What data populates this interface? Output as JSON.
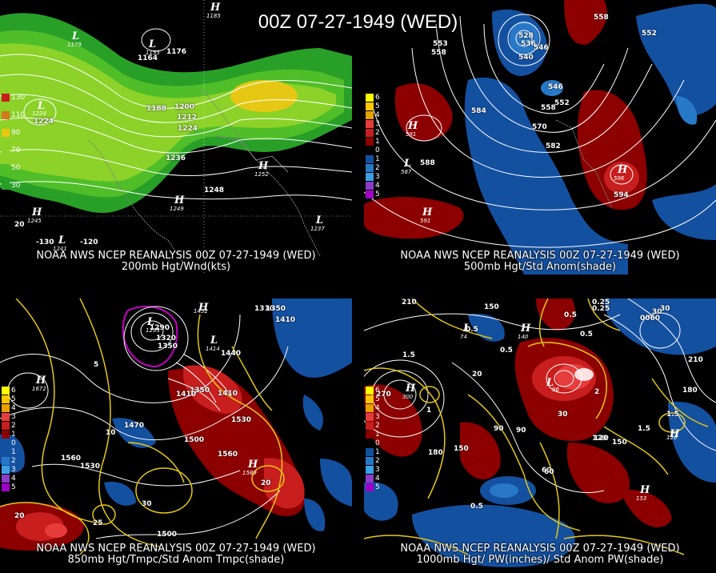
{
  "title": "00Z 07-27-1949 (WED)",
  "panels": [
    {
      "caption1": "NOAA NWS NCEP REANALYSIS 00Z 07-27-1949 (WED)",
      "caption2": "200mb Hgt/Wnd(kts)",
      "legend": [
        "130",
        "110",
        "90",
        "70",
        "50",
        "30"
      ],
      "legend_colors": [
        "#c81e1e",
        "#d2781e",
        "#e6c814",
        "#8cd228",
        "#50be28",
        "#28a028"
      ],
      "labels": [
        "1176",
        "1164",
        "1188",
        "1200",
        "1212",
        "1224",
        "1236",
        "1248",
        "1224",
        "20",
        "-130",
        "-120"
      ],
      "centers": [
        {
          "t": "L",
          "v": "1179"
        },
        {
          "t": "H",
          "v": "1185"
        },
        {
          "t": "L",
          "v": "1224"
        },
        {
          "t": "H",
          "v": "1252"
        },
        {
          "t": "H",
          "v": "1249"
        },
        {
          "t": "H",
          "v": "1245"
        },
        {
          "t": "L",
          "v": "1241"
        },
        {
          "t": "L",
          "v": "1237"
        },
        {
          "t": "L",
          "v": "1155"
        }
      ]
    },
    {
      "caption1": "NOAA NWS NCEP REANALYSIS 00Z 07-27-1949 (WED)",
      "caption2": "500mb Hgt/Std Anom(shade)",
      "legend": [
        "6",
        "5",
        "4",
        "3",
        "2",
        "1",
        "0",
        "1",
        "2",
        "3",
        "4",
        "5"
      ],
      "legend_colors": [
        "#ffff00",
        "#ffc800",
        "#e6a000",
        "#e63c3c",
        "#c81e1e",
        "#8c0000",
        "#000000",
        "#1450a0",
        "#2878c8",
        "#3ca0e6",
        "#8c3cc8",
        "#a000c8"
      ],
      "labels": [
        "528",
        "536",
        "546",
        "540",
        "558",
        "546",
        "558",
        "570",
        "582",
        "584",
        "588",
        "594",
        "552",
        "558",
        "552",
        "553"
      ],
      "centers": [
        {
          "t": "H",
          "v": "591"
        },
        {
          "t": "L",
          "v": "587"
        },
        {
          "t": "H",
          "v": "596"
        },
        {
          "t": "H",
          "v": "591"
        }
      ]
    },
    {
      "caption1": "NOAA NWS NCEP REANALYSIS 00Z 07-27-1949 (WED)",
      "caption2": "850mb Hgt/Tmpc/Std Anom Tmpc(shade)",
      "legend": [
        "6",
        "5",
        "4",
        "3",
        "2",
        "1",
        "0",
        "1",
        "2",
        "3",
        "4",
        "5"
      ],
      "labels": [
        "1290",
        "1320",
        "1350",
        "1410",
        "1440",
        "1350",
        "1410",
        "1470",
        "1500",
        "1530",
        "1560",
        "1560",
        "1530",
        "1500",
        "10",
        "20",
        "20",
        "25",
        "30",
        "5",
        "1310",
        "1350",
        "1410"
      ],
      "centers": [
        {
          "t": "H",
          "v": "1672"
        },
        {
          "t": "L",
          "v": "1293"
        },
        {
          "t": "H",
          "v": "1589"
        },
        {
          "t": "H",
          "v": "1452"
        },
        {
          "t": "L",
          "v": "1414"
        }
      ]
    },
    {
      "caption1": "NOAA NWS NCEP REANALYSIS 00Z 07-27-1949 (WED)",
      "caption2": "1000mb Hgt/ PW(inches)/ Std Anom PW(shade)",
      "legend": [
        "6",
        "5",
        "4",
        "3",
        "2",
        "1",
        "0",
        "1",
        "2",
        "3",
        "4",
        "5"
      ],
      "labels": [
        "150",
        "210",
        "180",
        "150",
        "120",
        "90",
        "60",
        "30",
        "0.5",
        "1",
        "1.5",
        "0.25",
        "0.5",
        "0.5",
        "0.5",
        "0.5",
        "20",
        "180",
        "210",
        "1.5",
        "2",
        "1.5",
        "90",
        "150",
        "30",
        "0.25",
        "60",
        "30",
        "0060",
        "270",
        "120"
      ],
      "centers": [
        {
          "t": "H",
          "v": "300"
        },
        {
          "t": "H",
          "v": "153"
        },
        {
          "t": "L",
          "v": "74"
        },
        {
          "t": "H",
          "v": "140"
        },
        {
          "t": "L",
          "v": "96"
        },
        {
          "t": "H",
          "v": "126"
        }
      ]
    }
  ]
}
